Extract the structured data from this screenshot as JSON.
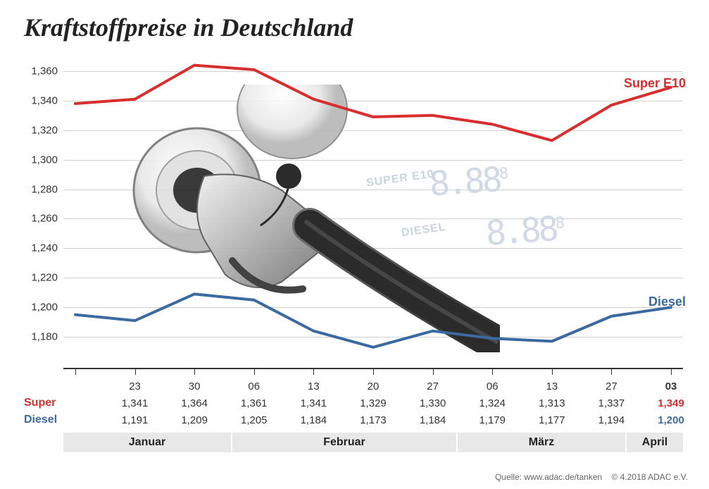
{
  "title": "Kraftstoffpreise in Deutschland",
  "chart": {
    "type": "line",
    "ylim": [
      1160,
      1370
    ],
    "ytick_step": 20,
    "yticks": [
      1160,
      1180,
      1200,
      1220,
      1240,
      1260,
      1280,
      1300,
      1320,
      1340,
      1360
    ],
    "ytick_labels": [
      "",
      "1,180",
      "1,200",
      "1,220",
      "1,240",
      "1,260",
      "1,280",
      "1,300",
      "1,320",
      "1,340",
      "1,360"
    ],
    "grid_color": "#d0d0d0",
    "background_color": "#ffffff",
    "title_fontsize": 36,
    "label_fontsize": 15,
    "series_label_fontsize": 18,
    "line_width": 4,
    "series": {
      "super": {
        "label": "Super E10",
        "color": "#d82e2e",
        "values": [
          1338,
          1341,
          1364,
          1361,
          1341,
          1329,
          1330,
          1324,
          1313,
          1337,
          1349
        ]
      },
      "diesel": {
        "label": "Diesel",
        "color": "#3b6aa0",
        "values": [
          1195,
          1191,
          1209,
          1205,
          1184,
          1173,
          1184,
          1179,
          1177,
          1194,
          1200
        ]
      }
    },
    "x_points": 11,
    "month_segments": [
      {
        "label": "Januar",
        "span": 3
      },
      {
        "label": "Februar",
        "span": 4
      },
      {
        "label": "März",
        "span": 3
      },
      {
        "label": "April",
        "span": 1
      }
    ]
  },
  "table": {
    "header_dates": [
      "",
      "23",
      "30",
      "06",
      "13",
      "20",
      "27",
      "06",
      "13",
      "27",
      "03"
    ],
    "rows": [
      {
        "key": "super",
        "label": "Super",
        "color": "#d82e2e",
        "values": [
          "",
          "1,341",
          "1,364",
          "1,361",
          "1,341",
          "1,329",
          "1,330",
          "1,324",
          "1,313",
          "1,337",
          "1,349"
        ],
        "highlight_last": true
      },
      {
        "key": "diesel",
        "label": "Diesel",
        "color": "#3b6aa0",
        "values": [
          "",
          "1,191",
          "1,209",
          "1,205",
          "1,184",
          "1,173",
          "1,184",
          "1,179",
          "1,177",
          "1,194",
          "1,200"
        ],
        "highlight_last": true
      }
    ],
    "date_fontsize": 15,
    "value_fontsize": 15
  },
  "watermarks": {
    "super_label": "SUPER E10",
    "diesel_label": "DIESEL",
    "digits": "8.88",
    "color": "#c8d4e0"
  },
  "footer": {
    "source_label": "Quelle:",
    "source_url": "www.adac.de/tanken",
    "copyright": "© 4.2018  ADAC e.V."
  }
}
